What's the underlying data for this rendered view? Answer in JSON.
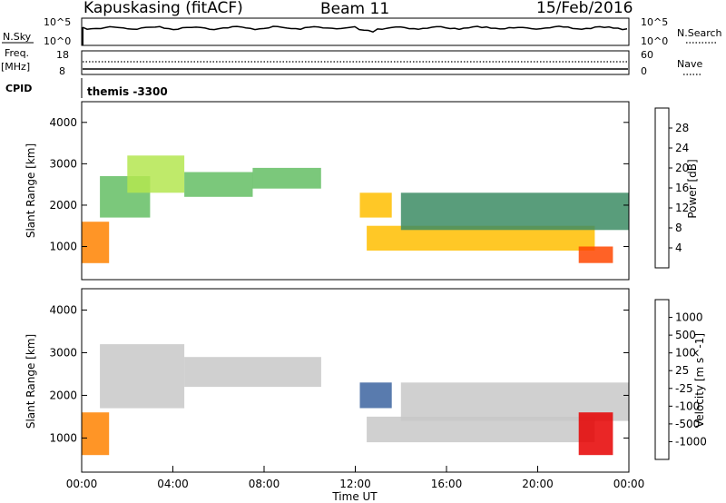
{
  "header": {
    "title": "Kapuskasing (fitACF)",
    "beam": "Beam 11",
    "date": "15/Feb/2016"
  },
  "status_panels": {
    "nsky_label": "N.Sky",
    "nsky_ticks": [
      "10^5",
      "10^0"
    ],
    "nsearch_label": "N.Search",
    "nsearch_ticks": [
      "10^5",
      "10^0"
    ],
    "freq_label": "Freq.",
    "freq_unit": "[MHz]",
    "freq_ticks": [
      "18",
      "8"
    ],
    "nave_label": "Nave",
    "nave_ticks": [
      "60",
      "0"
    ],
    "cpid_label": "CPID",
    "cpid_value": "themis -3300"
  },
  "colors": {
    "power_scale": [
      "#1e1eff",
      "#1e3cb4",
      "#3c64a0",
      "#3c8c64",
      "#64be64",
      "#b4e650",
      "#e6e63c",
      "#ffbe00",
      "#ff8200",
      "#ff4600",
      "#e60000"
    ],
    "velocity_scale": [
      "#1e1eff",
      "#1e3cb4",
      "#3c64a0",
      "#3c8c64",
      "#64be64",
      "#c8c8c8",
      "#ffbe00",
      "#ff8200",
      "#ff4600",
      "#e60000"
    ],
    "ground_scatter": "#c8c8c8"
  },
  "chart_data": [
    {
      "type": "heatmap",
      "panel": "power",
      "ylabel": "Slant Range [km]",
      "yticks": [
        "1000",
        "2000",
        "3000",
        "4000"
      ],
      "ylim": [
        200,
        4500
      ],
      "xlim": [
        0,
        24
      ],
      "colorbar_label": "Power [dB]",
      "colorbar_ticks": [
        "4",
        "8",
        "12",
        "16",
        "20",
        "24",
        "28"
      ],
      "colorbar_range": [
        0,
        30
      ],
      "regions": [
        {
          "t": [
            0.0,
            1.2
          ],
          "r": [
            600,
            1600
          ],
          "value": 24
        },
        {
          "t": [
            0.8,
            3.0
          ],
          "r": [
            1700,
            2700
          ],
          "value": 12
        },
        {
          "t": [
            2.0,
            4.5
          ],
          "r": [
            2300,
            3200
          ],
          "value": 14
        },
        {
          "t": [
            4.5,
            7.5
          ],
          "r": [
            2200,
            2800
          ],
          "value": 13
        },
        {
          "t": [
            7.5,
            10.5
          ],
          "r": [
            2400,
            2900
          ],
          "value": 11
        },
        {
          "t": [
            12.2,
            13.6
          ],
          "r": [
            1700,
            2300
          ],
          "value": 20
        },
        {
          "t": [
            12.5,
            22.5
          ],
          "r": [
            900,
            1500
          ],
          "value": 22
        },
        {
          "t": [
            14.0,
            24.0
          ],
          "r": [
            1400,
            2300
          ],
          "value": 8
        },
        {
          "t": [
            21.8,
            23.3
          ],
          "r": [
            600,
            1000
          ],
          "value": 26
        }
      ]
    },
    {
      "type": "heatmap",
      "panel": "velocity",
      "ylabel": "Slant Range [km]",
      "yticks": [
        "1000",
        "2000",
        "3000",
        "4000"
      ],
      "ylim": [
        200,
        4500
      ],
      "xlim": [
        0,
        24
      ],
      "xlabel": "Time UT",
      "xticks": [
        "00:00",
        "04:00",
        "08:00",
        "12:00",
        "16:00",
        "20:00",
        "00:00"
      ],
      "colorbar_label": "Velocity [m s^-1]",
      "colorbar_ticks": [
        "1000",
        "500",
        "100",
        "25",
        "-25",
        "-100",
        "-500",
        "-1000"
      ],
      "regions": [
        {
          "t": [
            0.0,
            1.2
          ],
          "r": [
            600,
            1600
          ],
          "value": -100
        },
        {
          "t": [
            0.8,
            4.5
          ],
          "r": [
            1700,
            3200
          ],
          "value": 0
        },
        {
          "t": [
            4.5,
            10.5
          ],
          "r": [
            2200,
            2900
          ],
          "value": 0
        },
        {
          "t": [
            12.2,
            13.6
          ],
          "r": [
            1700,
            2300
          ],
          "value": 100
        },
        {
          "t": [
            12.5,
            22.5
          ],
          "r": [
            900,
            1500
          ],
          "value": 0
        },
        {
          "t": [
            14.0,
            24.0
          ],
          "r": [
            1400,
            2300
          ],
          "value": 0
        },
        {
          "t": [
            21.8,
            23.3
          ],
          "r": [
            600,
            1600
          ],
          "value": -500
        }
      ]
    }
  ]
}
